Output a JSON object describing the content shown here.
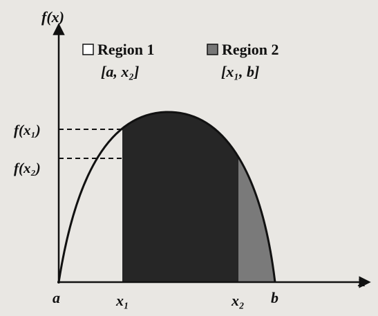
{
  "axes": {
    "y_label": "f(x)",
    "x_label": "x"
  },
  "legend": [
    {
      "name": "Region 1",
      "interval": "[a, x₂]"
    },
    {
      "name": "Region 2",
      "interval": "[x₁, b]"
    }
  ],
  "y_labels": [
    "f(x₁)",
    "f(x₂)"
  ],
  "x_labels": [
    "a",
    "x₁",
    "x₂",
    "b"
  ]
}
